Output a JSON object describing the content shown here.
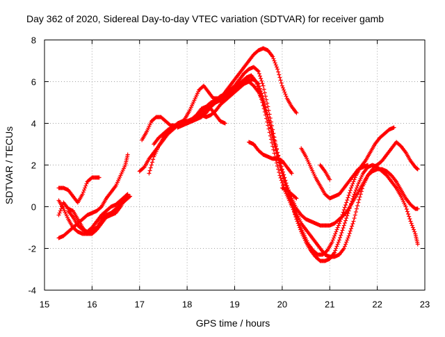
{
  "chart_data": {
    "type": "scatter",
    "title": "Day 362 of 2020, Sidereal Day-to-day VTEC variation (SDTVAR) for receiver gamb",
    "xlabel": "GPS time / hours",
    "ylabel": "SDTVAR / TECUs",
    "xlim": [
      15,
      23
    ],
    "ylim": [
      -4,
      8
    ],
    "xticks": [
      "15",
      "16",
      "17",
      "18",
      "19",
      "20",
      "21",
      "22",
      "23"
    ],
    "yticks": [
      "-4",
      "-2",
      "0",
      "2",
      "4",
      "6",
      "8"
    ],
    "grid": true,
    "marker": "+",
    "color": "#ff0000",
    "series": [
      {
        "name": "arc-1",
        "x": [
          15.3,
          15.4,
          15.5,
          15.6,
          15.7,
          15.8,
          15.9,
          16.0,
          16.1,
          16.2,
          16.3,
          16.4,
          16.5,
          16.6,
          16.7,
          16.75
        ],
        "y": [
          -1.5,
          -1.4,
          -1.2,
          -1.0,
          -0.8,
          -0.6,
          -0.4,
          -0.3,
          -0.2,
          0.0,
          0.4,
          0.7,
          1.0,
          1.5,
          2.0,
          2.5
        ]
      },
      {
        "name": "arc-2",
        "x": [
          15.3,
          15.4,
          15.5,
          15.6,
          15.7,
          15.8,
          15.9,
          16.0,
          16.1,
          16.2,
          16.3,
          16.4,
          16.5,
          16.6,
          16.7,
          16.8
        ],
        "y": [
          0.3,
          -0.1,
          -0.6,
          -1.0,
          -1.2,
          -1.3,
          -1.3,
          -1.1,
          -1.0,
          -0.6,
          -0.4,
          -0.3,
          -0.1,
          0.1,
          0.3,
          0.5
        ]
      },
      {
        "name": "arc-3",
        "x": [
          15.3,
          15.4,
          15.5,
          15.6,
          15.7,
          15.8,
          15.9,
          16.0,
          16.1,
          16.15
        ],
        "y": [
          0.9,
          0.9,
          0.8,
          0.5,
          0.2,
          0.6,
          1.2,
          1.4,
          1.4,
          1.4
        ]
      },
      {
        "name": "arc-4",
        "x": [
          15.3,
          15.4,
          15.5,
          15.6,
          15.7,
          15.8,
          15.9,
          16.0,
          16.1,
          16.2,
          16.3,
          16.4,
          16.5,
          16.6,
          16.7
        ],
        "y": [
          -0.4,
          0.2,
          -0.1,
          -0.2,
          -0.6,
          -1.0,
          -1.3,
          -1.3,
          -1.1,
          -0.8,
          -0.5,
          -0.4,
          -0.3,
          0.0,
          0.4
        ]
      },
      {
        "name": "arc-5",
        "x": [
          15.5,
          15.6,
          15.7,
          15.8,
          15.9,
          16.0,
          16.1,
          16.2,
          16.3,
          16.4,
          16.5,
          16.6,
          16.7,
          16.75
        ],
        "y": [
          -0.2,
          -0.5,
          -0.9,
          -1.1,
          -1.2,
          -1.0,
          -0.7,
          -0.4,
          -0.2,
          0.0,
          0.1,
          0.3,
          0.5,
          0.6
        ]
      },
      {
        "name": "arc-6",
        "x": [
          17.0,
          17.1,
          17.2,
          17.3,
          17.4,
          17.5,
          17.6,
          17.7,
          17.8,
          17.9,
          18.0,
          18.1,
          18.2,
          18.3,
          18.4,
          18.5,
          18.6,
          18.7,
          18.8,
          18.9,
          19.0,
          19.1,
          19.2,
          19.3,
          19.4,
          19.5,
          19.6,
          19.7,
          19.8,
          19.9,
          20.0,
          20.1,
          20.2,
          20.3
        ],
        "y": [
          1.7,
          1.9,
          2.3,
          2.6,
          2.9,
          3.2,
          3.5,
          3.7,
          3.9,
          4.0,
          4.1,
          4.2,
          4.3,
          4.4,
          4.6,
          4.8,
          5.0,
          5.2,
          5.5,
          5.8,
          6.1,
          6.4,
          6.7,
          7.0,
          7.3,
          7.5,
          7.6,
          7.5,
          7.2,
          6.6,
          5.8,
          5.2,
          4.8,
          4.5
        ]
      },
      {
        "name": "arc-7",
        "x": [
          17.05,
          17.15,
          17.25,
          17.35,
          17.45,
          17.55,
          17.65,
          17.75,
          17.85,
          17.95,
          18.05,
          18.15,
          18.25,
          18.35,
          18.45,
          18.55,
          18.65,
          18.75,
          18.85,
          18.95,
          19.05,
          19.15,
          19.25,
          19.35,
          19.45,
          19.55,
          19.65,
          19.75,
          19.85,
          19.95,
          20.05,
          20.15,
          20.25,
          20.35,
          20.45,
          20.55,
          20.65,
          20.75,
          20.85,
          20.95,
          21.05,
          21.15,
          21.25,
          21.35,
          21.45,
          21.55,
          21.65,
          21.75,
          21.85,
          21.95,
          22.05,
          22.15,
          22.25,
          22.35
        ],
        "y": [
          3.2,
          3.6,
          4.1,
          4.3,
          4.3,
          4.1,
          3.9,
          3.9,
          4.0,
          4.2,
          4.6,
          5.1,
          5.6,
          5.8,
          5.5,
          5.2,
          5.2,
          5.3,
          5.4,
          5.6,
          5.8,
          6.0,
          6.2,
          6.3,
          6.0,
          5.3,
          4.4,
          3.4,
          2.4,
          1.5,
          0.8,
          0.3,
          -0.2,
          -0.8,
          -1.3,
          -1.8,
          -2.1,
          -2.3,
          -2.3,
          -2.1,
          -1.7,
          -1.1,
          -0.5,
          0.2,
          0.9,
          1.5,
          1.9,
          2.2,
          2.6,
          3.0,
          3.3,
          3.5,
          3.7,
          3.8
        ]
      },
      {
        "name": "arc-8",
        "x": [
          17.2,
          17.3,
          17.4,
          17.5,
          17.6,
          17.7,
          17.8,
          17.9,
          18.0,
          18.1,
          18.2,
          18.3,
          18.4,
          18.5,
          18.6,
          18.7,
          18.8,
          18.9,
          19.0,
          19.1,
          19.2,
          19.3,
          19.4,
          19.5,
          19.6,
          19.7,
          19.8,
          19.9,
          20.0,
          20.1,
          20.2,
          20.3,
          20.4,
          20.5,
          20.6,
          20.7,
          20.8,
          20.9,
          21.0,
          21.1,
          21.2,
          21.3,
          21.4,
          21.5,
          21.6,
          21.7,
          21.8,
          21.9,
          22.0,
          22.1,
          22.2,
          22.3,
          22.4,
          22.5,
          22.6,
          22.7,
          22.8,
          22.85
        ],
        "y": [
          1.6,
          2.4,
          2.9,
          3.3,
          3.6,
          3.8,
          4.0,
          4.1,
          4.1,
          4.2,
          4.4,
          4.6,
          4.8,
          5.0,
          5.1,
          5.3,
          5.4,
          5.6,
          5.8,
          6.1,
          6.4,
          6.6,
          6.7,
          6.5,
          5.8,
          4.8,
          3.7,
          2.6,
          1.6,
          0.8,
          0.1,
          -0.6,
          -1.2,
          -1.7,
          -2.1,
          -2.4,
          -2.6,
          -2.6,
          -2.5,
          -2.2,
          -1.6,
          -0.9,
          -0.2,
          0.5,
          1.1,
          1.6,
          1.9,
          2.0,
          1.9,
          1.7,
          1.5,
          1.2,
          0.9,
          0.5,
          0.0,
          -0.7,
          -1.3,
          -1.8
        ]
      },
      {
        "name": "arc-9",
        "x": [
          17.3,
          17.4,
          17.5,
          17.6,
          17.7,
          17.8,
          17.9,
          18.0,
          18.1,
          18.2,
          18.3,
          18.4,
          18.5,
          18.6,
          18.7,
          18.8,
          18.9,
          19.0,
          19.1,
          19.2,
          19.3,
          19.4,
          19.5,
          19.6,
          19.7,
          19.8,
          19.9,
          20.0,
          20.1,
          20.2,
          20.3,
          20.4,
          20.5,
          20.6,
          20.7,
          20.8,
          20.9,
          21.0,
          21.1,
          21.2,
          21.3,
          21.4,
          21.5,
          21.6,
          21.7,
          21.8,
          21.9
        ],
        "y": [
          3.0,
          3.3,
          3.5,
          3.7,
          3.8,
          3.9,
          4.0,
          4.0,
          4.1,
          4.2,
          4.4,
          4.3,
          4.4,
          4.6,
          4.9,
          5.1,
          5.3,
          5.5,
          5.7,
          5.9,
          6.1,
          6.1,
          5.9,
          5.2,
          4.3,
          3.3,
          2.4,
          1.6,
          0.9,
          0.3,
          -0.3,
          -0.8,
          -1.1,
          -1.4,
          -1.7,
          -2.0,
          -2.3,
          -2.4,
          -2.4,
          -2.3,
          -2.0,
          -1.4,
          -0.7,
          0.2,
          1.0,
          1.5,
          1.8
        ]
      },
      {
        "name": "arc-10",
        "x": [
          17.8,
          17.9,
          18.0,
          18.1,
          18.2,
          18.3,
          18.4,
          18.5,
          18.6,
          18.7,
          18.8,
          18.9,
          19.0,
          19.1,
          19.2,
          19.3,
          19.4,
          19.5,
          19.6,
          19.7,
          19.8,
          19.9,
          20.0,
          20.1,
          20.2,
          20.3,
          20.4,
          20.5,
          20.6,
          20.7,
          20.8,
          20.9,
          21.0,
          21.1,
          21.2,
          21.3,
          21.4,
          21.5,
          21.6,
          21.7,
          21.8,
          21.9,
          22.0,
          22.1,
          22.2,
          22.3,
          22.4,
          22.5,
          22.6,
          22.7,
          22.8,
          22.85
        ],
        "y": [
          3.8,
          3.9,
          4.0,
          4.1,
          4.2,
          4.3,
          4.5,
          4.8,
          5.0,
          5.1,
          5.3,
          5.4,
          5.6,
          5.8,
          5.9,
          6.0,
          5.8,
          5.5,
          5.0,
          4.3,
          3.5,
          2.6,
          1.8,
          1.0,
          0.4,
          -0.1,
          -0.4,
          -0.6,
          -0.7,
          -0.8,
          -0.9,
          -0.9,
          -0.9,
          -0.8,
          -0.6,
          -0.4,
          -0.1,
          0.3,
          0.7,
          1.1,
          1.5,
          1.7,
          1.8,
          1.8,
          1.7,
          1.5,
          1.2,
          0.8,
          0.4,
          0.1,
          -0.1,
          -0.1
        ]
      },
      {
        "name": "arc-11",
        "x": [
          17.9,
          18.0,
          18.1,
          18.2,
          18.3,
          18.4,
          18.5,
          18.6,
          18.7,
          18.8
        ],
        "y": [
          4.0,
          4.1,
          4.2,
          4.4,
          4.7,
          4.8,
          4.7,
          4.4,
          4.1,
          4.0
        ]
      },
      {
        "name": "arc-12",
        "x": [
          19.3,
          19.4,
          19.5,
          19.6,
          19.7,
          19.8,
          19.9,
          20.0,
          20.1,
          20.2
        ],
        "y": [
          3.1,
          3.0,
          2.7,
          2.5,
          2.4,
          2.3,
          2.3,
          2.2,
          1.9,
          1.6
        ]
      },
      {
        "name": "arc-13",
        "x": [
          20.0,
          20.1,
          20.2,
          20.3
        ],
        "y": [
          0.9,
          0.8,
          0.6,
          0.4
        ]
      },
      {
        "name": "arc-14",
        "x": [
          20.4,
          20.5,
          20.6,
          20.7,
          20.8,
          20.9,
          21.0,
          21.1,
          21.2,
          21.3,
          21.4,
          21.5,
          21.6,
          21.7,
          21.8
        ],
        "y": [
          2.8,
          2.4,
          1.9,
          1.4,
          1.0,
          0.6,
          0.4,
          0.5,
          0.6,
          0.9,
          1.2,
          1.5,
          1.8,
          1.9,
          2.0
        ]
      },
      {
        "name": "arc-15",
        "x": [
          20.8,
          20.9,
          21.0
        ],
        "y": [
          2.0,
          1.7,
          1.3
        ]
      },
      {
        "name": "arc-16",
        "x": [
          21.9,
          22.0,
          22.1,
          22.2,
          22.3,
          22.4,
          22.5,
          22.6,
          22.7,
          22.8,
          22.85
        ],
        "y": [
          1.9,
          2.0,
          2.2,
          2.5,
          2.8,
          3.1,
          2.9,
          2.6,
          2.2,
          1.9,
          1.8
        ]
      }
    ]
  }
}
